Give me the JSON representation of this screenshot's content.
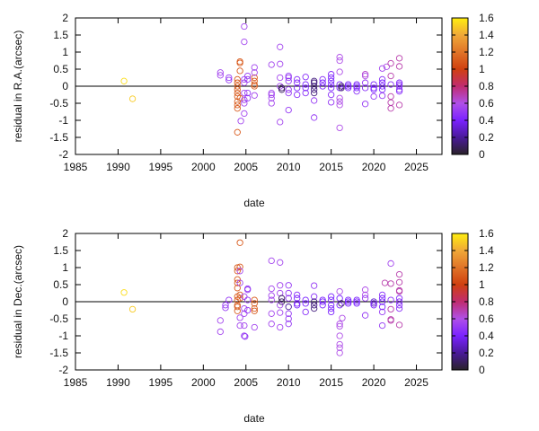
{
  "chart_data": [
    {
      "type": "scatter",
      "xlabel": "date",
      "ylabel": "residual in R.A.(arcsec)",
      "xlim": [
        1985,
        2028
      ],
      "ylim": [
        -2,
        2
      ],
      "xticks": [
        "1985",
        "1990",
        "1995",
        "2000",
        "2005",
        "2010",
        "2015",
        "2020",
        "2025"
      ],
      "yticks": [
        "-2",
        "-1.5",
        "-1",
        "-0.5",
        "0",
        "0.5",
        "1",
        "1.5",
        "2"
      ],
      "colorbar": {
        "range": [
          0,
          1.6
        ],
        "ticks": [
          "0",
          "0.2",
          "0.4",
          "0.6",
          "0.8",
          "1",
          "1.2",
          "1.4",
          "1.6"
        ]
      },
      "reference_line": 0,
      "marker": "open-circle",
      "points": [
        [
          1990.7,
          0.15,
          1.55
        ],
        [
          1991.7,
          -0.37,
          1.5
        ],
        [
          2002,
          0.4,
          0.55
        ],
        [
          2002,
          0.32,
          0.55
        ],
        [
          2003,
          0.25,
          0.5
        ],
        [
          2003,
          0.18,
          0.5
        ],
        [
          2004,
          0.2,
          1.1
        ],
        [
          2004,
          0.1,
          1.1
        ],
        [
          2004,
          0,
          1.1
        ],
        [
          2004,
          -0.1,
          1.1
        ],
        [
          2004,
          -0.2,
          1.1
        ],
        [
          2004,
          -0.3,
          1.1
        ],
        [
          2004,
          -0.45,
          1.1
        ],
        [
          2004,
          -0.55,
          1.1
        ],
        [
          2004,
          -0.65,
          1.1
        ],
        [
          2004,
          -1.35,
          1.1
        ],
        [
          2004.3,
          0.72,
          1.1
        ],
        [
          2004.3,
          0.68,
          1.1
        ],
        [
          2004.3,
          0.45,
          1.1
        ],
        [
          2004.3,
          -0.35,
          1.1
        ],
        [
          2004.4,
          -1.02,
          0.55
        ],
        [
          2004.8,
          1.75,
          0.55
        ],
        [
          2004.8,
          1.3,
          0.55
        ],
        [
          2004.8,
          0.2,
          0.55
        ],
        [
          2004.8,
          0.1,
          0.55
        ],
        [
          2004.8,
          -0.2,
          0.55
        ],
        [
          2004.8,
          -0.4,
          0.55
        ],
        [
          2004.8,
          -0.5,
          0.55
        ],
        [
          2004.8,
          -0.8,
          0.55
        ],
        [
          2005.2,
          0.3,
          0.5
        ],
        [
          2005.2,
          0.2,
          0.5
        ],
        [
          2005.2,
          -0.2,
          0.5
        ],
        [
          2005.2,
          -0.35,
          0.5
        ],
        [
          2006,
          0.25,
          1.1
        ],
        [
          2006,
          0.15,
          1.1
        ],
        [
          2006,
          0.05,
          1.1
        ],
        [
          2006,
          0,
          1.1
        ],
        [
          2006,
          0.55,
          0.55
        ],
        [
          2006,
          0.4,
          0.55
        ],
        [
          2006,
          -0.27,
          0.55
        ],
        [
          2008,
          0.63,
          0.55
        ],
        [
          2008,
          -0.2,
          0.55
        ],
        [
          2008,
          -0.25,
          0.55
        ],
        [
          2008,
          -0.35,
          0.55
        ],
        [
          2008,
          -0.5,
          0.55
        ],
        [
          2009,
          1.15,
          0.55
        ],
        [
          2009,
          0.65,
          0.55
        ],
        [
          2009,
          0.25,
          0.55
        ],
        [
          2009,
          0,
          0.55
        ],
        [
          2009,
          -1.05,
          0.55
        ],
        [
          2009.2,
          -0.1,
          0.1
        ],
        [
          2009.2,
          -0.05,
          0.1
        ],
        [
          2010,
          0.3,
          0.5
        ],
        [
          2010,
          0.25,
          0.5
        ],
        [
          2010,
          0.15,
          0.5
        ],
        [
          2010,
          -0.1,
          0.5
        ],
        [
          2010,
          -0.2,
          0.5
        ],
        [
          2010,
          -0.7,
          0.5
        ],
        [
          2011,
          0.2,
          0.45
        ],
        [
          2011,
          0.1,
          0.45
        ],
        [
          2011,
          -0.05,
          0.4
        ],
        [
          2011,
          -0.25,
          0.45
        ],
        [
          2012,
          0.27,
          0.45
        ],
        [
          2012,
          0.05,
          0.4
        ],
        [
          2012,
          -0.05,
          0.4
        ],
        [
          2012,
          -0.2,
          0.45
        ],
        [
          2013,
          0.15,
          0.15
        ],
        [
          2013,
          0.1,
          0.15
        ],
        [
          2013,
          0,
          0.15
        ],
        [
          2013,
          -0.1,
          0.15
        ],
        [
          2013,
          -0.2,
          0.15
        ],
        [
          2013,
          -0.42,
          0.5
        ],
        [
          2013,
          -0.92,
          0.5
        ],
        [
          2014,
          0.2,
          0.45
        ],
        [
          2014,
          0.1,
          0.4
        ],
        [
          2014,
          0,
          0.4
        ],
        [
          2015,
          0.35,
          0.45
        ],
        [
          2015,
          0.25,
          0.4
        ],
        [
          2015,
          0.15,
          0.4
        ],
        [
          2015,
          0.05,
          0.4
        ],
        [
          2015,
          -0.05,
          0.4
        ],
        [
          2015,
          -0.25,
          0.45
        ],
        [
          2015,
          -0.47,
          0.5
        ],
        [
          2016,
          0.85,
          0.6
        ],
        [
          2016,
          0.75,
          0.6
        ],
        [
          2016,
          0.42,
          0.6
        ],
        [
          2016,
          0.05,
          0.4
        ],
        [
          2016,
          -0.05,
          0.4
        ],
        [
          2016,
          -0.35,
          0.6
        ],
        [
          2016,
          -0.45,
          0.6
        ],
        [
          2016,
          -0.55,
          0.6
        ],
        [
          2016,
          -1.22,
          0.6
        ],
        [
          2016.2,
          0,
          0.1
        ],
        [
          2016.2,
          -0.05,
          0.1
        ],
        [
          2017,
          0.05,
          0.4
        ],
        [
          2017,
          0,
          0.4
        ],
        [
          2017,
          -0.05,
          0.4
        ],
        [
          2018,
          0.05,
          0.4
        ],
        [
          2018,
          0,
          0.4
        ],
        [
          2018,
          -0.05,
          0.4
        ],
        [
          2018,
          -0.15,
          0.45
        ],
        [
          2019,
          0.35,
          0.65
        ],
        [
          2019,
          0.3,
          0.6
        ],
        [
          2019,
          0.1,
          0.5
        ],
        [
          2019,
          -0.05,
          0.45
        ],
        [
          2019,
          -0.52,
          0.5
        ],
        [
          2020,
          0.05,
          0.4
        ],
        [
          2020,
          -0.05,
          0.4
        ],
        [
          2020,
          -0.1,
          0.4
        ],
        [
          2020,
          -0.3,
          0.5
        ],
        [
          2021,
          0.52,
          0.55
        ],
        [
          2021,
          0.2,
          0.45
        ],
        [
          2021,
          0.1,
          0.4
        ],
        [
          2021,
          0,
          0.4
        ],
        [
          2021,
          -0.1,
          0.4
        ],
        [
          2021,
          -0.28,
          0.5
        ],
        [
          2021.5,
          0.57,
          0.6
        ],
        [
          2022,
          0.67,
          0.7
        ],
        [
          2022,
          0.3,
          0.7
        ],
        [
          2022,
          0.05,
          0.45
        ],
        [
          2022,
          -0.3,
          0.7
        ],
        [
          2022,
          -0.48,
          0.7
        ],
        [
          2022,
          -0.65,
          0.7
        ],
        [
          2023,
          0.82,
          0.7
        ],
        [
          2023,
          0.58,
          0.7
        ],
        [
          2023,
          0.1,
          0.45
        ],
        [
          2023,
          0.05,
          0.45
        ],
        [
          2023,
          0,
          0.45
        ],
        [
          2023,
          -0.1,
          0.45
        ],
        [
          2023,
          -0.15,
          0.45
        ],
        [
          2023,
          -0.55,
          0.7
        ]
      ]
    },
    {
      "type": "scatter",
      "xlabel": "date",
      "ylabel": "residual in Dec.(arcsec)",
      "xlim": [
        1985,
        2028
      ],
      "ylim": [
        -2,
        2
      ],
      "xticks": [
        "1985",
        "1990",
        "1995",
        "2000",
        "2005",
        "2010",
        "2015",
        "2020",
        "2025"
      ],
      "yticks": [
        "-2",
        "-1.5",
        "-1",
        "-0.5",
        "0",
        "0.5",
        "1",
        "1.5",
        "2"
      ],
      "colorbar": {
        "range": [
          0,
          1.6
        ],
        "ticks": [
          "0",
          "0.2",
          "0.4",
          "0.6",
          "0.8",
          "1",
          "1.2",
          "1.4",
          "1.6"
        ]
      },
      "reference_line": 0,
      "marker": "open-circle",
      "points": [
        [
          1990.7,
          0.27,
          1.55
        ],
        [
          1991.7,
          -0.22,
          1.5
        ],
        [
          2002,
          -0.55,
          0.55
        ],
        [
          2002,
          -0.88,
          0.55
        ],
        [
          2002.6,
          -0.1,
          0.5
        ],
        [
          2002.6,
          -0.18,
          0.5
        ],
        [
          2003,
          0.05,
          0.5
        ],
        [
          2004,
          1.0,
          1.1
        ],
        [
          2004,
          0.9,
          1.1
        ],
        [
          2004,
          0.65,
          1.1
        ],
        [
          2004,
          0.55,
          1.1
        ],
        [
          2004,
          0.4,
          1.1
        ],
        [
          2004,
          0.15,
          1.1
        ],
        [
          2004,
          0.05,
          1.1
        ],
        [
          2004,
          -0.1,
          1.1
        ],
        [
          2004,
          -0.15,
          1.1
        ],
        [
          2004,
          -0.27,
          1.1
        ],
        [
          2004.3,
          1.73,
          1.1
        ],
        [
          2004.3,
          1.02,
          1.1
        ],
        [
          2004.3,
          0.2,
          1.1
        ],
        [
          2004.3,
          0.1,
          1.1
        ],
        [
          2004.3,
          0.9,
          0.55
        ],
        [
          2004.3,
          0.55,
          0.55
        ],
        [
          2004.3,
          -0.47,
          0.55
        ],
        [
          2004.3,
          -0.7,
          0.55
        ],
        [
          2004.8,
          0.15,
          0.55
        ],
        [
          2004.8,
          -0.2,
          0.55
        ],
        [
          2004.8,
          -0.35,
          0.55
        ],
        [
          2004.8,
          -0.7,
          0.55
        ],
        [
          2004.8,
          -1.0,
          0.5
        ],
        [
          2004.9,
          -1.02,
          0.5
        ],
        [
          2005.2,
          0.38,
          0.5
        ],
        [
          2005.2,
          0.35,
          0.5
        ],
        [
          2005.2,
          0.05,
          0.5
        ],
        [
          2005.2,
          -0.25,
          0.5
        ],
        [
          2006,
          0.05,
          1.1
        ],
        [
          2006,
          -0.05,
          1.1
        ],
        [
          2006,
          -0.2,
          1.1
        ],
        [
          2006,
          -0.27,
          1.1
        ],
        [
          2006,
          -0.75,
          0.55
        ],
        [
          2008,
          1.2,
          0.55
        ],
        [
          2008,
          0.38,
          0.55
        ],
        [
          2008,
          0.18,
          0.55
        ],
        [
          2008,
          0.05,
          0.55
        ],
        [
          2008,
          -0.35,
          0.55
        ],
        [
          2008,
          -0.65,
          0.55
        ],
        [
          2009,
          1.15,
          0.55
        ],
        [
          2009,
          0.48,
          0.55
        ],
        [
          2009,
          0.25,
          0.55
        ],
        [
          2009,
          -0.1,
          0.55
        ],
        [
          2009,
          -0.32,
          0.55
        ],
        [
          2009,
          -0.75,
          0.55
        ],
        [
          2009.2,
          0.1,
          0.1
        ],
        [
          2009.2,
          0,
          0.1
        ],
        [
          2010,
          0.48,
          0.5
        ],
        [
          2010,
          0.25,
          0.5
        ],
        [
          2010,
          0.1,
          0.5
        ],
        [
          2010,
          -0.15,
          0.2
        ],
        [
          2010,
          -0.35,
          0.5
        ],
        [
          2010,
          -0.5,
          0.5
        ],
        [
          2010,
          -0.65,
          0.5
        ],
        [
          2011,
          0.2,
          0.45
        ],
        [
          2011,
          0.1,
          0.4
        ],
        [
          2011,
          -0.05,
          0.4
        ],
        [
          2011,
          -0.1,
          0.4
        ],
        [
          2012,
          0.05,
          0.4
        ],
        [
          2012,
          -0.05,
          0.4
        ],
        [
          2012,
          -0.3,
          0.45
        ],
        [
          2013,
          0.47,
          0.5
        ],
        [
          2013,
          0.15,
          0.45
        ],
        [
          2013,
          0,
          0.15
        ],
        [
          2013,
          -0.1,
          0.15
        ],
        [
          2013,
          -0.2,
          0.15
        ],
        [
          2014,
          0.05,
          0.4
        ],
        [
          2014,
          0,
          0.4
        ],
        [
          2014,
          -0.1,
          0.4
        ],
        [
          2015,
          0.15,
          0.4
        ],
        [
          2015,
          0.05,
          0.4
        ],
        [
          2015,
          -0.1,
          0.4
        ],
        [
          2015,
          -0.2,
          0.4
        ],
        [
          2015,
          -0.3,
          0.4
        ],
        [
          2016,
          0.3,
          0.6
        ],
        [
          2016,
          0.1,
          0.4
        ],
        [
          2016,
          -0.1,
          0.4
        ],
        [
          2016,
          -0.65,
          0.6
        ],
        [
          2016,
          -0.72,
          0.6
        ],
        [
          2016,
          -1.0,
          0.6
        ],
        [
          2016,
          -1.25,
          0.6
        ],
        [
          2016,
          -1.35,
          0.6
        ],
        [
          2016,
          -1.5,
          0.6
        ],
        [
          2016.2,
          -0.05,
          0.1
        ],
        [
          2016.3,
          -0.48,
          0.6
        ],
        [
          2017,
          0.05,
          0.4
        ],
        [
          2017,
          0,
          0.4
        ],
        [
          2017,
          -0.05,
          0.4
        ],
        [
          2018,
          0.05,
          0.4
        ],
        [
          2018,
          0,
          0.4
        ],
        [
          2018,
          -0.05,
          0.4
        ],
        [
          2019,
          0.35,
          0.6
        ],
        [
          2019,
          0.2,
          0.6
        ],
        [
          2019,
          0.1,
          0.5
        ],
        [
          2019,
          -0.4,
          0.5
        ],
        [
          2020,
          0,
          0.3
        ],
        [
          2020,
          -0.05,
          0.3
        ],
        [
          2020,
          -0.1,
          0.4
        ],
        [
          2021,
          0.2,
          0.45
        ],
        [
          2021,
          0.1,
          0.4
        ],
        [
          2021,
          0,
          0.4
        ],
        [
          2021,
          -0.15,
          0.4
        ],
        [
          2021,
          -0.3,
          0.5
        ],
        [
          2021,
          -0.7,
          0.5
        ],
        [
          2021.3,
          0.55,
          0.7
        ],
        [
          2022,
          1.12,
          0.55
        ],
        [
          2022,
          0.53,
          0.7
        ],
        [
          2022,
          0.05,
          0.45
        ],
        [
          2022,
          -0.22,
          0.7
        ],
        [
          2022,
          -0.52,
          0.7
        ],
        [
          2022,
          -0.55,
          0.7
        ],
        [
          2023,
          0.8,
          0.7
        ],
        [
          2023,
          0.57,
          0.7
        ],
        [
          2023,
          0.33,
          0.7
        ],
        [
          2023,
          0.3,
          0.7
        ],
        [
          2023,
          0.1,
          0.45
        ],
        [
          2023,
          0,
          0.45
        ],
        [
          2023,
          -0.1,
          0.45
        ],
        [
          2023,
          -0.2,
          0.45
        ],
        [
          2023,
          -0.68,
          0.7
        ]
      ]
    }
  ]
}
